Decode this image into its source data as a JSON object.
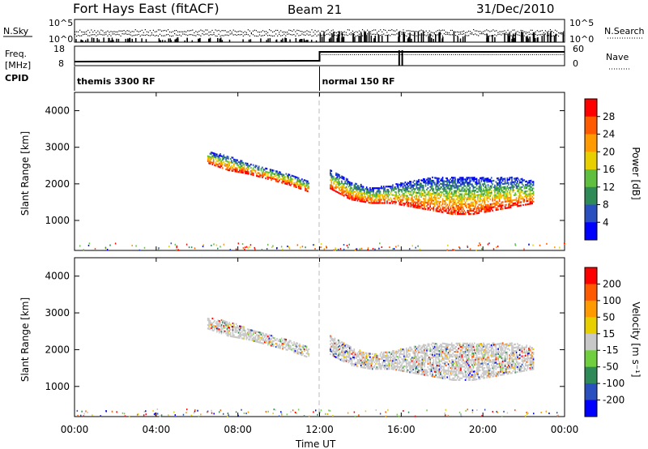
{
  "header": {
    "station": "Fort Hays East (fitACF)",
    "beam": "Beam 21",
    "date": "31/Dec/2010"
  },
  "noise_panel": {
    "left_label": "N.Sky",
    "right_label": "N.Search",
    "left_ticks": [
      "10^5",
      "10^0"
    ],
    "right_ticks": [
      "10^5",
      "10^0"
    ]
  },
  "freq_panel": {
    "left_label_1": "Freq.",
    "left_label_2": "[MHz]",
    "left_ticks": [
      "18",
      "8"
    ],
    "right_ticks": [
      "60",
      "0"
    ],
    "right_label": "Nave",
    "cpid_label": "CPID",
    "cpid_segments": [
      {
        "label": "themis 3300 RF",
        "start_hour": 0,
        "end_hour": 12
      },
      {
        "label": "normal 150 RF",
        "start_hour": 12,
        "end_hour": 24
      }
    ]
  },
  "chart_data": [
    {
      "type": "heatmap",
      "name_in_image": "Power",
      "ylabel": "Slant Range [km]",
      "xlabel": "Time UT",
      "x_ticks": [
        "00:00",
        "04:00",
        "08:00",
        "12:00",
        "16:00",
        "20:00",
        "00:00"
      ],
      "y_ticks": [
        1000,
        2000,
        3000,
        4000
      ],
      "ylim": [
        180,
        4500
      ],
      "xlim_hours": [
        0,
        24
      ],
      "colorbar_label": "Power [dB]",
      "colorbar_ticks": [
        "28",
        "24",
        "20",
        "16",
        "12",
        "8",
        "4"
      ],
      "colors": [
        "#0000ff",
        "#2a4fbf",
        "#2e8b57",
        "#5fbf3f",
        "#e8d000",
        "#ff9a00",
        "#ff5a00",
        "#ff0000"
      ],
      "bands": [
        {
          "x": [
            6.5,
            7.5,
            8.5,
            9.5,
            10.5,
            11.5
          ],
          "range_top": [
            2900,
            2800,
            2600,
            2450,
            2300,
            2100
          ],
          "range_bottom": [
            2600,
            2400,
            2300,
            2150,
            2000,
            1800
          ]
        },
        {
          "x": [
            12.5,
            13.5,
            14.5,
            15.5,
            16.5,
            17.5,
            18.5,
            19.5,
            20.5,
            21.5,
            22.5
          ],
          "range_top": [
            2400,
            2100,
            1900,
            2000,
            2100,
            2200,
            2200,
            2200,
            2200,
            2200,
            2100
          ],
          "range_bottom": [
            1900,
            1600,
            1500,
            1500,
            1400,
            1300,
            1200,
            1200,
            1300,
            1400,
            1500
          ]
        }
      ]
    },
    {
      "type": "heatmap",
      "name_in_image": "Velocity",
      "ylabel": "Slant Range [km]",
      "xlabel": "Time UT",
      "x_ticks": [
        "00:00",
        "04:00",
        "08:00",
        "12:00",
        "16:00",
        "20:00",
        "00:00"
      ],
      "y_ticks": [
        1000,
        2000,
        3000,
        4000
      ],
      "ylim": [
        180,
        4500
      ],
      "xlim_hours": [
        0,
        24
      ],
      "colorbar_label": "Velocity [m s⁻¹]",
      "colorbar_ticks": [
        "200",
        "100",
        "50",
        "15",
        "-15",
        "-50",
        "-100",
        "-200"
      ],
      "colors": [
        "#0000ff",
        "#2a4fbf",
        "#2e8b57",
        "#6fcf3f",
        "#c8c8c8",
        "#e8d000",
        "#ff9a00",
        "#ff5a00",
        "#ff0000"
      ]
    }
  ]
}
